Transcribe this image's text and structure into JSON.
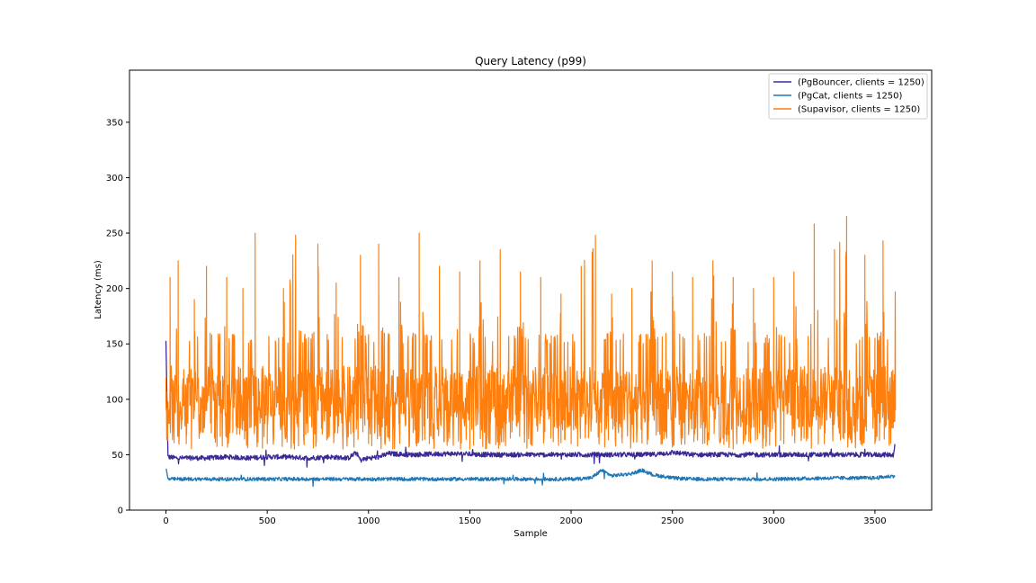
{
  "chart_data": {
    "type": "line",
    "title": "Query Latency (p99)",
    "xlabel": "Sample",
    "ylabel": "Latency (ms)",
    "xlim": [
      -180,
      3780
    ],
    "ylim": [
      0,
      397
    ],
    "xticks": [
      0,
      500,
      1000,
      1500,
      2000,
      2500,
      3000,
      3500
    ],
    "yticks": [
      0,
      50,
      100,
      150,
      200,
      250,
      300,
      350
    ],
    "grid": false,
    "legend_position": "upper right",
    "sample_count": 3600,
    "series": [
      {
        "name": "(PgBouncer, clients = 1250)",
        "color": "#3b2a94",
        "x": [
          0,
          10,
          50,
          100,
          200,
          300,
          400,
          500,
          600,
          700,
          800,
          900,
          940,
          960,
          1000,
          1050,
          1100,
          1200,
          1400,
          1600,
          1800,
          2000,
          2200,
          2400,
          2500,
          2600,
          2800,
          3000,
          3200,
          3400,
          3590,
          3600
        ],
        "values": [
          152,
          48,
          47,
          47,
          47,
          48,
          47,
          48,
          48,
          47,
          48,
          47,
          52,
          45,
          47,
          48,
          51,
          50,
          51,
          50,
          50,
          50,
          50,
          50,
          52,
          50,
          50,
          50,
          50,
          50,
          50,
          60
        ]
      },
      {
        "name": "(PgCat, clients = 1250)",
        "color": "#1f77b4",
        "x": [
          0,
          10,
          100,
          500,
          1000,
          1500,
          2000,
          2100,
          2150,
          2200,
          2300,
          2350,
          2400,
          2500,
          2600,
          3000,
          3300,
          3500,
          3600
        ],
        "values": [
          38,
          28,
          28,
          28,
          28,
          28,
          28,
          29,
          36,
          31,
          33,
          36,
          32,
          29,
          28,
          28,
          29,
          29,
          31
        ]
      },
      {
        "name": "(Supavisor, clients = 1250)",
        "color": "#ff7f0e",
        "x": [
          0,
          20,
          40,
          60,
          100,
          140,
          180,
          200,
          240,
          300,
          330,
          380,
          420,
          440,
          500,
          580,
          640,
          700,
          750,
          800,
          840,
          900,
          960,
          1000,
          1050,
          1100,
          1150,
          1220,
          1250,
          1300,
          1350,
          1400,
          1450,
          1500,
          1550,
          1600,
          1650,
          1700,
          1750,
          1800,
          1850,
          1900,
          1950,
          2000,
          2050,
          2120,
          2150,
          2200,
          2250,
          2300,
          2350,
          2400,
          2450,
          2500,
          2550,
          2600,
          2650,
          2700,
          2750,
          2800,
          2850,
          2900,
          2950,
          3000,
          3050,
          3100,
          3150,
          3200,
          3250,
          3300,
          3360,
          3400,
          3450,
          3500,
          3540,
          3570,
          3600
        ],
        "values": [
          100,
          210,
          75,
          225,
          60,
          190,
          70,
          220,
          65,
          210,
          70,
          200,
          75,
          250,
          60,
          200,
          248,
          70,
          240,
          65,
          205,
          70,
          230,
          60,
          240,
          65,
          210,
          70,
          250,
          60,
          220,
          65,
          215,
          55,
          225,
          60,
          235,
          65,
          215,
          60,
          210,
          65,
          195,
          60,
          220,
          248,
          70,
          195,
          65,
          200,
          70,
          225,
          60,
          215,
          65,
          210,
          60,
          225,
          65,
          210,
          60,
          200,
          65,
          210,
          60,
          215,
          65,
          258,
          60,
          235,
          265,
          70,
          230,
          60,
          243,
          70,
          197
        ]
      }
    ]
  }
}
